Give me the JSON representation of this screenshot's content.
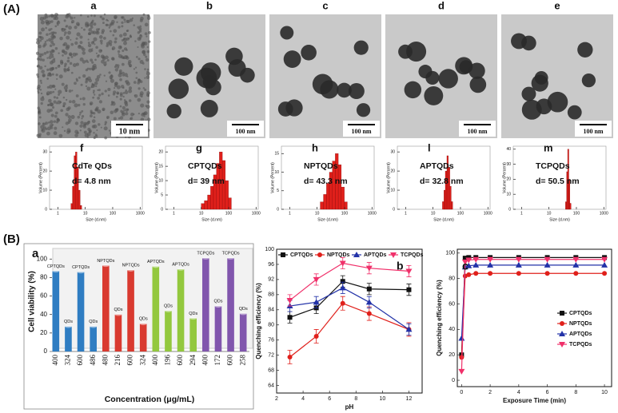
{
  "panel_a_label": "(A)",
  "panel_b_label": "(B)",
  "tem_images": [
    {
      "label": "a",
      "scale_bar": "10 nm"
    },
    {
      "label": "b",
      "scale_bar": "100 nm"
    },
    {
      "label": "c",
      "scale_bar": "100 nm"
    },
    {
      "label": "d",
      "scale_bar": "100 nm"
    },
    {
      "label": "e",
      "scale_bar": "100 nm"
    }
  ],
  "chart_data": [
    {
      "type": "histogram",
      "label": "f",
      "sample": "CdTe QDs",
      "size": "d= 4.8 nm",
      "x_label": "Size (d.nm)",
      "y_label": "Volume (Percent)",
      "x_log": true,
      "color": "#e0201b",
      "bins": [
        3.0,
        3.4,
        3.9,
        4.4,
        5.0,
        5.7,
        6.5,
        7.4
      ],
      "counts": [
        3,
        12,
        28,
        30,
        22,
        10,
        2
      ],
      "xlim": [
        0.5,
        1200
      ],
      "xticks": [
        1,
        10,
        100,
        1000
      ],
      "ylim": [
        0,
        33
      ],
      "yticks": [
        0,
        10,
        20,
        30
      ]
    },
    {
      "type": "histogram",
      "label": "g",
      "sample": "CPTQDs",
      "size": "d= 39 nm",
      "x_label": "Size (d.nm)",
      "y_label": "Volume (Percent)",
      "x_log": true,
      "color": "#e0201b",
      "bins": [
        10,
        13,
        17,
        22,
        28,
        36,
        46,
        59,
        76,
        98,
        126
      ],
      "counts": [
        2,
        3,
        5,
        8,
        12,
        16,
        20,
        17,
        10,
        4
      ],
      "xlim": [
        0.5,
        1200
      ],
      "xticks": [
        1,
        10,
        100,
        1000
      ],
      "ylim": [
        0,
        22
      ],
      "yticks": [
        0,
        5,
        10,
        15,
        20
      ]
    },
    {
      "type": "histogram",
      "label": "h",
      "sample": "NPTQDs",
      "size": "d= 43.3 nm",
      "x_label": "Size (d.nm)",
      "y_label": "Volume (Percent)",
      "x_log": true,
      "color": "#e0201b",
      "bins": [
        13,
        17,
        22,
        28,
        36,
        46,
        59,
        76,
        98,
        126
      ],
      "counts": [
        2,
        4,
        7,
        10,
        13,
        15,
        12,
        6,
        2
      ],
      "xlim": [
        0.5,
        1200
      ],
      "xticks": [
        1,
        10,
        100,
        1000
      ],
      "ylim": [
        0,
        17
      ],
      "yticks": [
        0,
        5,
        10,
        15
      ]
    },
    {
      "type": "histogram",
      "label": "l",
      "sample": "APTQDs",
      "size": "d= 32.8 nm",
      "x_label": "Size (d.nm)",
      "y_label": "Volume (Percent)",
      "x_log": true,
      "color": "#e0201b",
      "bins": [
        22,
        25,
        28,
        32,
        36,
        41,
        46,
        52
      ],
      "counts": [
        4,
        10,
        20,
        28,
        22,
        12,
        4
      ],
      "xlim": [
        0.5,
        1200
      ],
      "xticks": [
        1,
        10,
        100,
        1000
      ],
      "ylim": [
        0,
        33
      ],
      "yticks": [
        0,
        10,
        20,
        30
      ]
    },
    {
      "type": "histogram",
      "label": "m",
      "sample": "TCPQDs",
      "size": "d= 50.5 nm",
      "x_label": "Size (d.nm)",
      "y_label": "Volume (Percent)",
      "x_log": true,
      "color": "#e0201b",
      "bins": [
        40,
        44,
        48,
        53,
        58,
        64
      ],
      "counts": [
        5,
        25,
        40,
        20,
        4
      ],
      "xlim": [
        0.5,
        1200
      ],
      "xticks": [
        1,
        10,
        100,
        1000
      ],
      "ylim": [
        0,
        42
      ],
      "yticks": [
        0,
        10,
        20,
        30,
        40
      ]
    },
    {
      "type": "bar",
      "label": "a",
      "x_label": "Concentration (μg/mL)",
      "y_label": "Cell viability (%)",
      "categories": [
        "400",
        "324",
        "600",
        "486",
        "480",
        "216",
        "600",
        "324",
        "400",
        "196",
        "600",
        "294",
        "400",
        "172",
        "600",
        "258"
      ],
      "values": [
        87,
        27,
        86,
        27,
        93,
        40,
        88,
        30,
        92,
        44,
        89,
        36,
        101,
        49,
        101,
        41
      ],
      "bar_labels": [
        "CPTQDs",
        "QDs",
        "CPTQDs",
        "QDs",
        "NPTQDs",
        "QDs",
        "NPTQDs",
        "QDs",
        "APTQDs",
        "QDs",
        "APTQDs",
        "QDs",
        "TCPQDs",
        "QDs",
        "TCPQDs",
        "QDs"
      ],
      "colors": [
        "#2f7dc2",
        "#2f7dc2",
        "#2f7dc2",
        "#2f7dc2",
        "#d93a30",
        "#d93a30",
        "#d93a30",
        "#d93a30",
        "#93c83e",
        "#93c83e",
        "#93c83e",
        "#93c83e",
        "#8156ad",
        "#8156ad",
        "#8156ad",
        "#8156ad"
      ],
      "ylim": [
        0,
        108
      ],
      "yticks": [
        0,
        20,
        40,
        60,
        80,
        100
      ]
    },
    {
      "type": "line",
      "label": "b",
      "x_label": "pH",
      "y_label": "Quenching efficiency (%)",
      "legend": "top",
      "x": [
        3,
        5,
        7,
        9,
        12
      ],
      "series": [
        {
          "name": "CPTQDs",
          "color": "#111111",
          "marker": "square",
          "values": [
            82,
            84.5,
            91.5,
            89.5,
            89.3
          ],
          "errors": [
            1.5,
            1.5,
            1.5,
            1.5,
            1.5
          ]
        },
        {
          "name": "NPTQDs",
          "color": "#e0201b",
          "marker": "circle",
          "values": [
            71.5,
            77,
            85.7,
            83,
            78.8
          ],
          "errors": [
            1.8,
            1.8,
            1.8,
            1.8,
            1.8
          ]
        },
        {
          "name": "APTQDs",
          "color": "#2232a8",
          "marker": "triangle-up",
          "values": [
            85,
            86,
            89.8,
            86,
            78.8
          ],
          "errors": [
            1.5,
            1.5,
            1.5,
            1.5,
            1.5
          ]
        },
        {
          "name": "TCPQDs",
          "color": "#f0306a",
          "marker": "triangle-down",
          "values": [
            86.5,
            92,
            96.3,
            95,
            94.2
          ],
          "errors": [
            1.5,
            1.5,
            1.5,
            1.5,
            1.5
          ]
        }
      ],
      "xlim": [
        2,
        13
      ],
      "xticks": [
        2,
        4,
        6,
        8,
        10,
        12
      ],
      "ylim": [
        62,
        100
      ],
      "yticks": [
        64,
        68,
        72,
        76,
        80,
        84,
        88,
        92,
        96,
        100
      ]
    },
    {
      "type": "line",
      "label": "c",
      "x_label": "Exposure Time (min)",
      "y_label": "Quenching efficiency (%)",
      "legend": "right",
      "x": [
        0,
        0.25,
        0.5,
        1,
        2,
        4,
        6,
        8,
        10
      ],
      "series": [
        {
          "name": "CPTQDs",
          "color": "#111111",
          "marker": "square",
          "values": [
            20,
            96,
            96.5,
            96.5,
            96.5,
            96.5,
            96.5,
            96.5,
            96.5
          ]
        },
        {
          "name": "NPTQDs",
          "color": "#e0201b",
          "marker": "circle",
          "values": [
            18,
            82,
            83,
            84,
            84,
            84,
            84,
            84,
            84
          ]
        },
        {
          "name": "APTQDs",
          "color": "#2232a8",
          "marker": "triangle-up",
          "values": [
            33,
            89,
            90,
            90.5,
            90.5,
            90.5,
            90.5,
            90.5,
            90.5
          ]
        },
        {
          "name": "TCPQDs",
          "color": "#f0306a",
          "marker": "triangle-down",
          "values": [
            7,
            93,
            94.5,
            95,
            95,
            95,
            95,
            95,
            95
          ]
        }
      ],
      "xlim": [
        -0.3,
        10.5
      ],
      "xticks": [
        0,
        2,
        4,
        6,
        8,
        10
      ],
      "ylim": [
        -5,
        103
      ],
      "yticks": [
        0,
        20,
        40,
        60,
        80,
        100
      ]
    }
  ]
}
